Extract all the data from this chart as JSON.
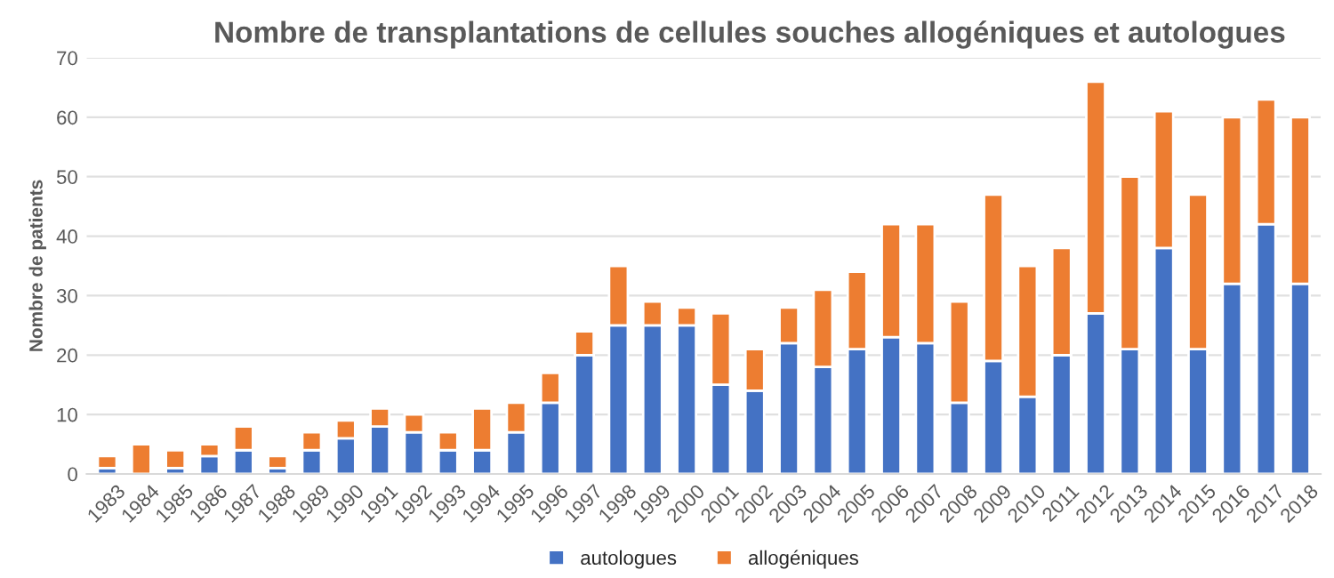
{
  "chart_data": {
    "type": "bar",
    "title": "Nombre de transplantations de cellules souches allogéniques et autologues",
    "ylabel": "Nombre de patients",
    "categories": [
      "1983",
      "1984",
      "1985",
      "1986",
      "1987",
      "1988",
      "1989",
      "1990",
      "1991",
      "1992",
      "1993",
      "1994",
      "1995",
      "1996",
      "1997",
      "1998",
      "1999",
      "2000",
      "2001",
      "2002",
      "2003",
      "2004",
      "2005",
      "2006",
      "2007",
      "2008",
      "2009",
      "2010",
      "2011",
      "2012",
      "2013",
      "2014",
      "2015",
      "2016",
      "2017",
      "2018"
    ],
    "stacked": true,
    "series": [
      {
        "name": "autologues",
        "color": "#4472c4",
        "values": [
          1,
          0,
          1,
          3,
          4,
          1,
          4,
          6,
          8,
          7,
          4,
          4,
          7,
          12,
          20,
          25,
          25,
          25,
          15,
          14,
          22,
          18,
          21,
          23,
          22,
          12,
          19,
          13,
          20,
          27,
          21,
          38,
          21,
          32,
          42,
          32
        ]
      },
      {
        "name": "allogéniques",
        "color": "#ed7d31",
        "values": [
          2,
          5,
          3,
          2,
          4,
          2,
          3,
          3,
          3,
          3,
          3,
          7,
          5,
          5,
          4,
          10,
          4,
          3,
          12,
          7,
          6,
          13,
          13,
          19,
          20,
          17,
          28,
          22,
          18,
          39,
          29,
          23,
          26,
          28,
          21,
          28
        ]
      }
    ],
    "ylim": [
      0,
      70
    ],
    "yticks": [
      0,
      10,
      20,
      30,
      40,
      50,
      60,
      70
    ],
    "grid": "y",
    "legend": "bottom"
  }
}
